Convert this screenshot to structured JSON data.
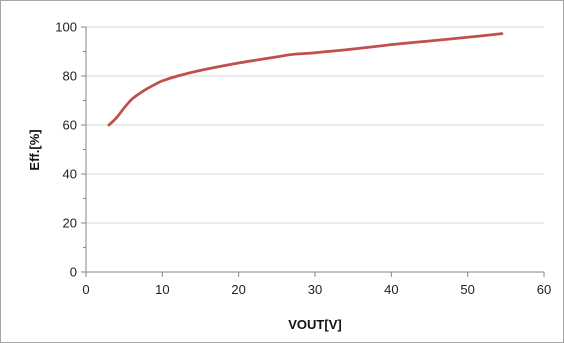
{
  "chart_data": {
    "type": "line",
    "title": "",
    "xlabel": "VOUT[V]",
    "ylabel": "Eff.[%]",
    "xlim": [
      0,
      60
    ],
    "ylim": [
      0,
      100
    ],
    "x_ticks": [
      0,
      10,
      20,
      30,
      40,
      50,
      60
    ],
    "y_ticks": [
      0,
      20,
      40,
      60,
      80,
      100
    ],
    "x_tick_labels": [
      "0",
      "10",
      "20",
      "30",
      "40",
      "50",
      "60"
    ],
    "y_tick_labels": [
      "0",
      "20",
      "40",
      "60",
      "80",
      "100"
    ],
    "grid": "horizontal",
    "legend": "none",
    "series": [
      {
        "color": "#c0504d",
        "x": [
          3,
          4,
          5,
          6,
          7,
          8,
          9,
          10,
          12,
          15,
          20,
          25,
          27,
          30,
          35,
          40,
          45,
          50,
          54.5
        ],
        "y": [
          60,
          63,
          67,
          70.5,
          72.8,
          74.8,
          76.5,
          78,
          80,
          82.3,
          85.3,
          87.8,
          88.8,
          89.5,
          91,
          92.8,
          94.3,
          95.8,
          97.3
        ]
      }
    ]
  }
}
